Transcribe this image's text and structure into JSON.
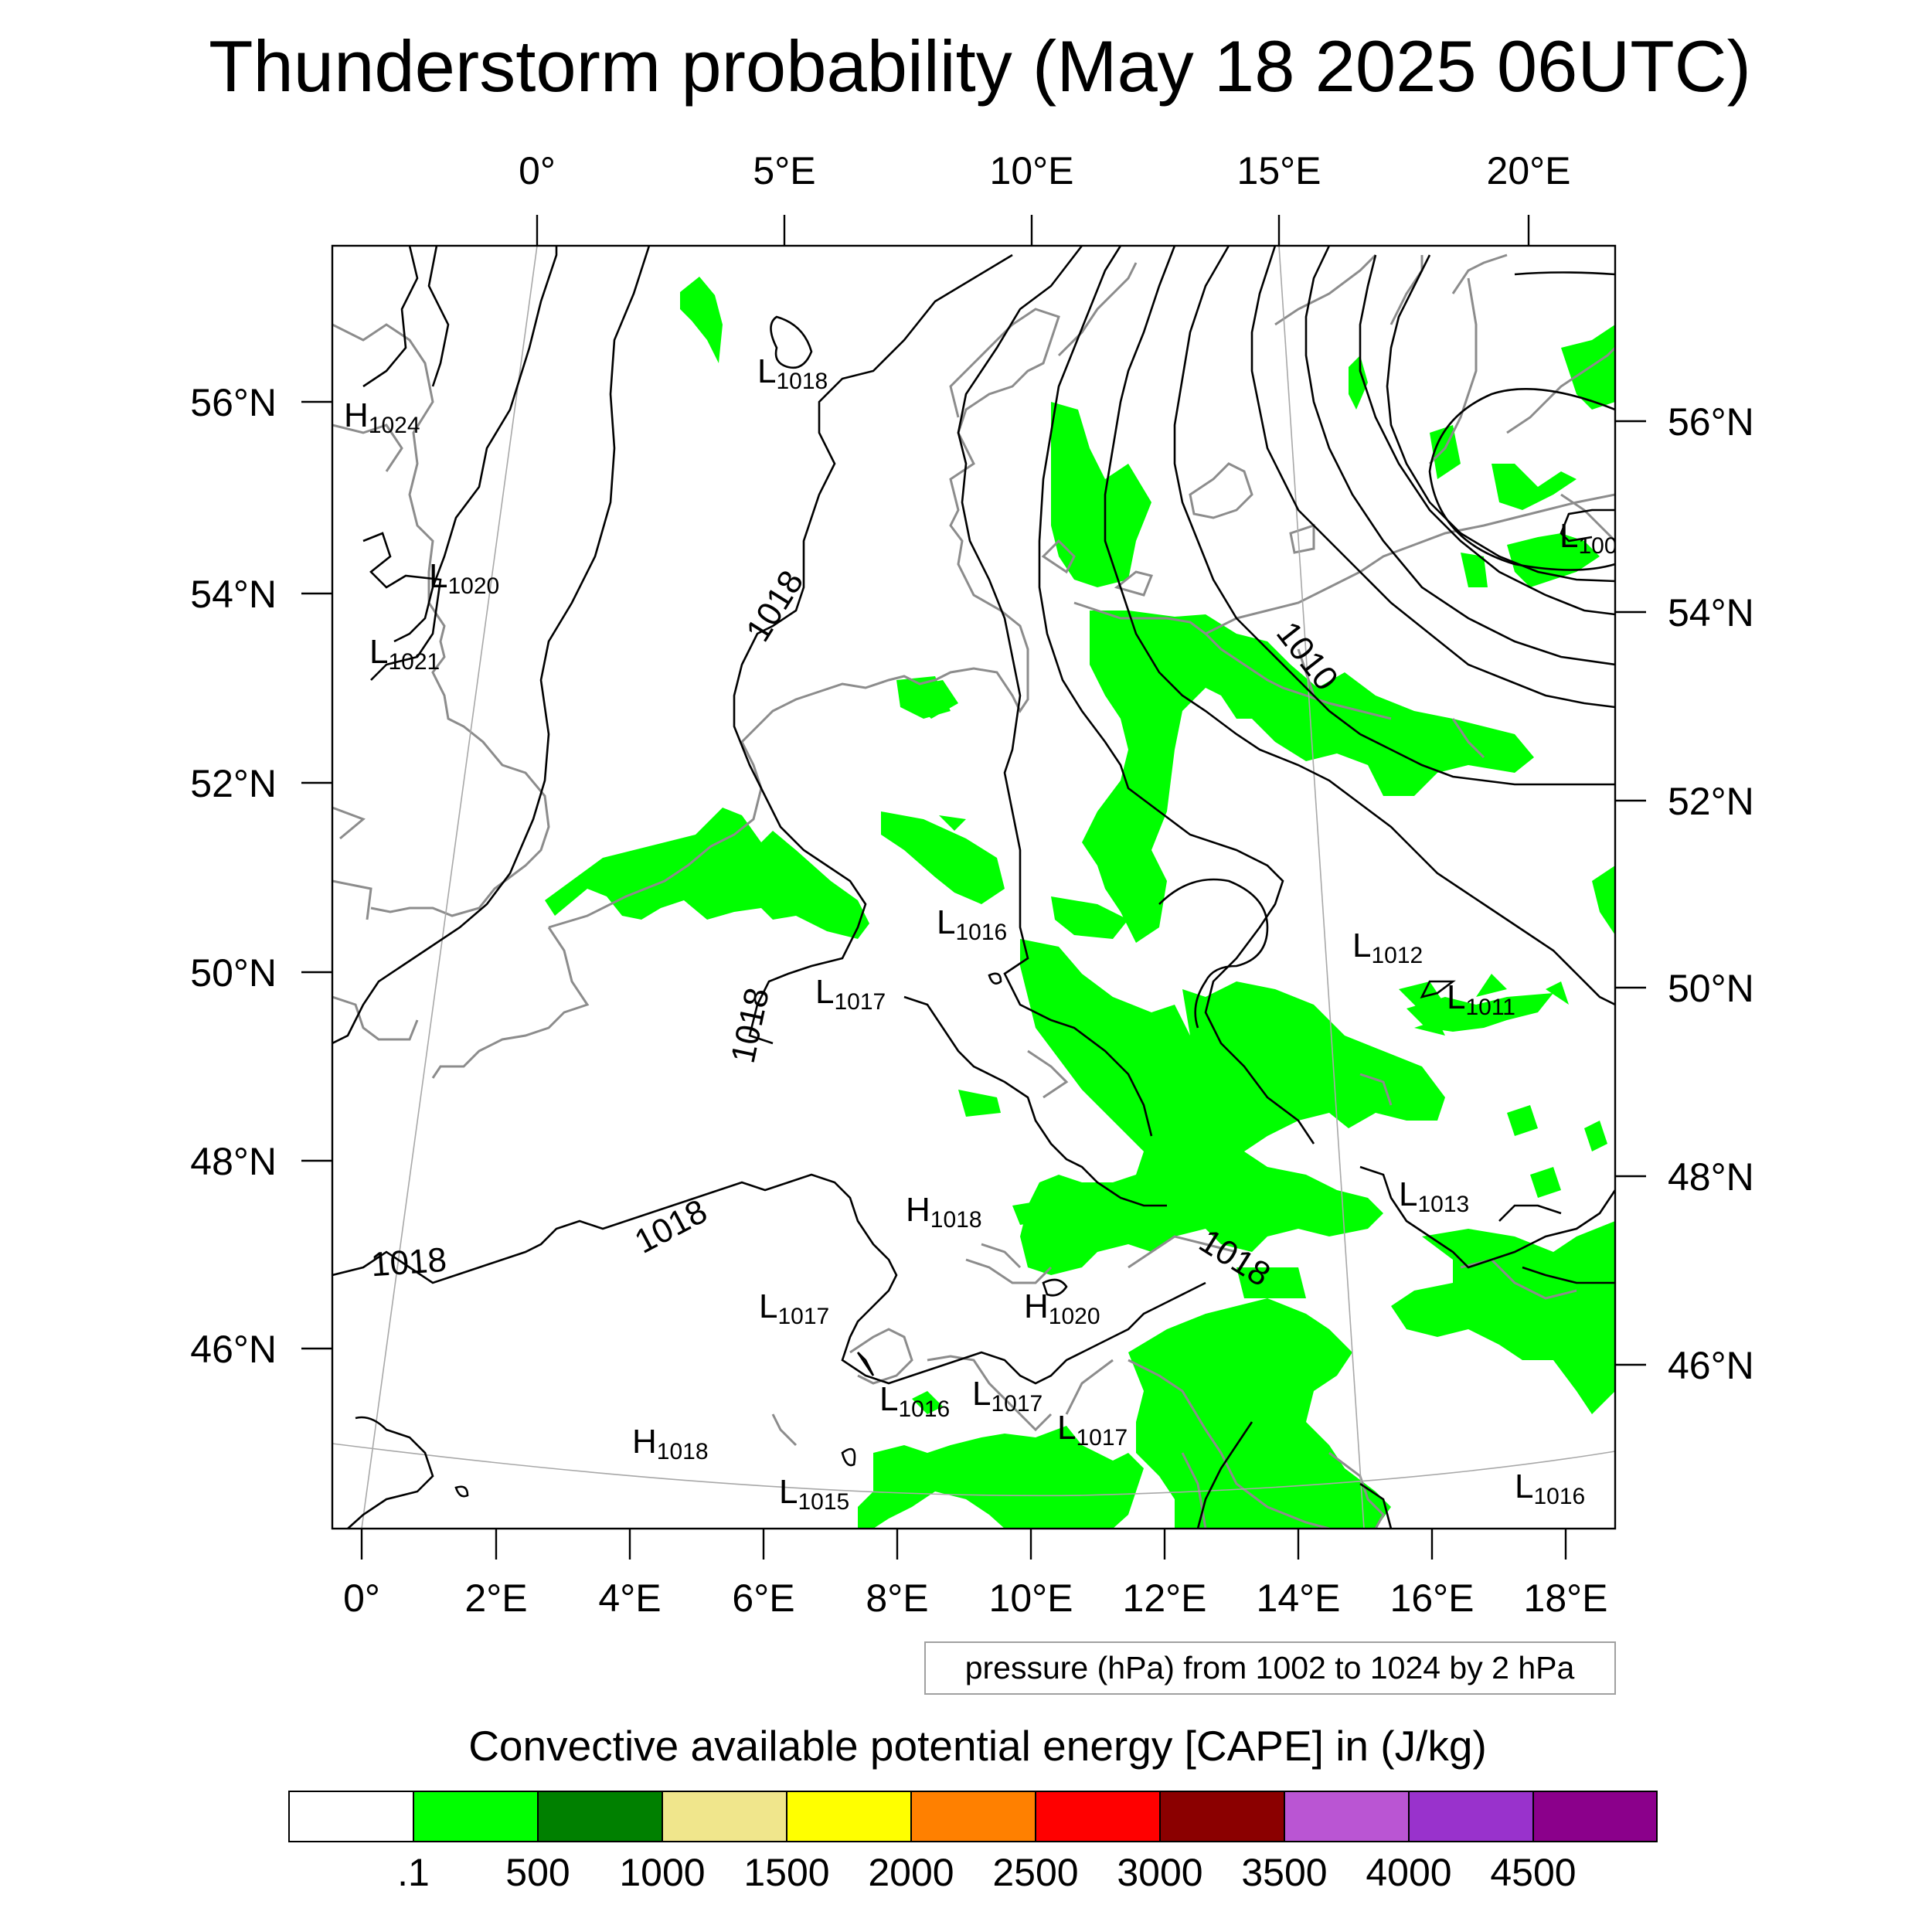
{
  "title": "Thunderstorm probability (May 18 2025 06UTC)",
  "top_lon_labels": [
    "0°",
    "5°E",
    "10°E",
    "15°E",
    "20°E"
  ],
  "bottom_lon_labels": [
    "0°",
    "2°E",
    "4°E",
    "6°E",
    "8°E",
    "10°E",
    "12°E",
    "14°E",
    "16°E",
    "18°E"
  ],
  "left_lat_labels": [
    "56°N",
    "54°N",
    "52°N",
    "50°N",
    "48°N",
    "46°N"
  ],
  "right_lat_labels": [
    "56°N",
    "54°N",
    "52°N",
    "50°N",
    "48°N",
    "46°N"
  ],
  "pressure_centers": [
    {
      "letter": "H",
      "value": "1024"
    },
    {
      "letter": "L",
      "value": "1020"
    },
    {
      "letter": "L",
      "value": "1021"
    },
    {
      "letter": "L",
      "value": "1018"
    },
    {
      "letter": "L",
      "value": "1016"
    },
    {
      "letter": "L",
      "value": "1017"
    },
    {
      "letter": "H",
      "value": "1018"
    },
    {
      "letter": "L",
      "value": "1017"
    },
    {
      "letter": "H",
      "value": "1020"
    },
    {
      "letter": "L",
      "value": "1016"
    },
    {
      "letter": "L",
      "value": "1017"
    },
    {
      "letter": "L",
      "value": "1017"
    },
    {
      "letter": "H",
      "value": "1018"
    },
    {
      "letter": "L",
      "value": "1015"
    },
    {
      "letter": "L",
      "value": "1012"
    },
    {
      "letter": "L",
      "value": "1011"
    },
    {
      "letter": "L",
      "value": "1013"
    },
    {
      "letter": "L",
      "value": "1016"
    },
    {
      "letter": "L",
      "value": "100"
    }
  ],
  "isobar_labels": [
    "1018",
    "1018",
    "1018",
    "1018",
    "1018",
    "1010"
  ],
  "contour_note": "pressure (hPa) from 1002 to 1024 by 2 hPa",
  "colorbar_title": "Convective available potential energy [CAPE] in (J/kg)",
  "colorbar_colors": [
    "#ffffff",
    "#00ff00",
    "#008000",
    "#f0e68c",
    "#ffff00",
    "#ff8000",
    "#ff0000",
    "#8b0000",
    "#ba55d3",
    "#9932cc",
    "#8b008b"
  ],
  "colorbar_labels": [
    ".1",
    "500",
    "1000",
    "1500",
    "2000",
    "2500",
    "3000",
    "3500",
    "4000",
    "4500"
  ],
  "cape_fill_color": "#00ff00"
}
